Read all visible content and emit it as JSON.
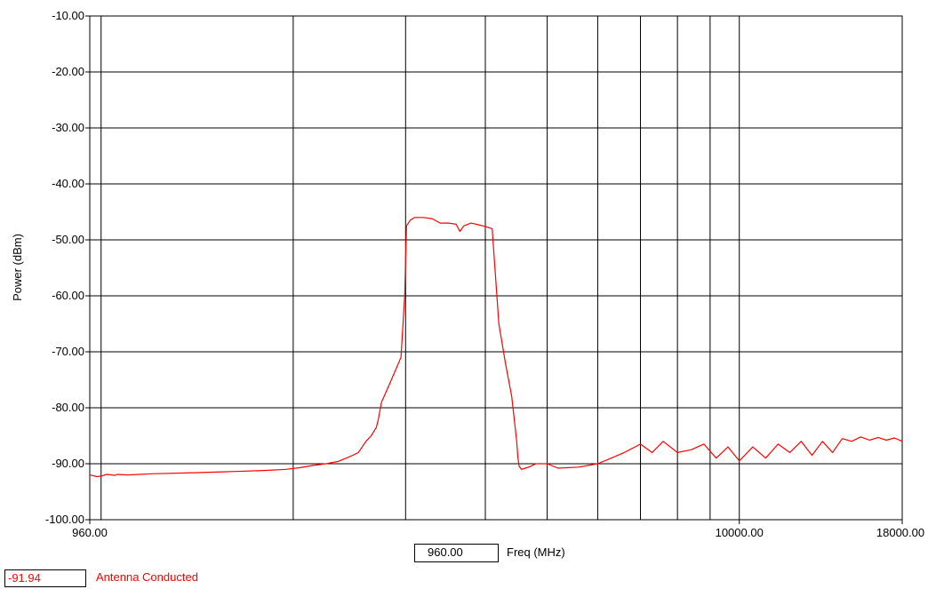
{
  "chart_data": {
    "type": "line",
    "ylabel": "Power (dBm)",
    "xlabel": "Freq (MHz)",
    "x_scale": "log",
    "xlim": [
      960,
      18000
    ],
    "ylim": [
      -100,
      -10
    ],
    "y_ticks": [
      "-10.00",
      "-20.00",
      "-30.00",
      "-40.00",
      "-50.00",
      "-60.00",
      "-70.00",
      "-80.00",
      "-90.00",
      "-100.00"
    ],
    "x_ticks": [
      {
        "value": 960,
        "label": "960.00"
      },
      {
        "value": 10000,
        "label": "10000.00"
      },
      {
        "value": 18000,
        "label": "18000.00"
      }
    ],
    "x_gridlines": [
      1000,
      2000,
      3000,
      4000,
      5000,
      6000,
      7000,
      8000,
      9000,
      10000
    ],
    "grid": true,
    "series": [
      {
        "name": "Antenna Conducted",
        "color": "#ff0000",
        "x": [
          960,
          985,
          1000,
          1020,
          1040,
          1050,
          1060,
          1100,
          1200,
          1400,
          1600,
          1800,
          1950,
          2050,
          2150,
          2250,
          2300,
          2350,
          2420,
          2480,
          2530,
          2600,
          2650,
          2700,
          2720,
          2750,
          2800,
          2850,
          2900,
          2950,
          2990,
          3010,
          3050,
          3100,
          3200,
          3300,
          3400,
          3500,
          3600,
          3650,
          3700,
          3800,
          3900,
          4000,
          4100,
          4200,
          4300,
          4400,
          4480,
          4500,
          4520,
          4560,
          4620,
          4700,
          4800,
          5000,
          5200,
          5600,
          6000,
          6300,
          6600,
          7000,
          7300,
          7600,
          8000,
          8400,
          8800,
          9200,
          9600,
          10000,
          10500,
          11000,
          11500,
          12000,
          12500,
          13000,
          13500,
          14000,
          14500,
          15000,
          15500,
          16000,
          16500,
          17000,
          17500,
          18000
        ],
        "y": [
          -92.0,
          -92.3,
          -92.2,
          -91.9,
          -92.0,
          -92.1,
          -91.9,
          -92.0,
          -91.8,
          -91.6,
          -91.4,
          -91.2,
          -91.0,
          -90.7,
          -90.3,
          -90.0,
          -89.8,
          -89.6,
          -89.0,
          -88.5,
          -88.0,
          -86.0,
          -85.0,
          -83.5,
          -82.0,
          -79.0,
          -77.0,
          -75.0,
          -73.0,
          -71.0,
          -60.0,
          -47.5,
          -46.5,
          -46.0,
          -46.0,
          -46.2,
          -47.0,
          -47.0,
          -47.2,
          -48.5,
          -47.5,
          -47.0,
          -47.3,
          -47.6,
          -48.0,
          -65.0,
          -72.0,
          -78.0,
          -86.0,
          -89.0,
          -90.5,
          -91.0,
          -90.8,
          -90.5,
          -90.0,
          -90.0,
          -90.8,
          -90.6,
          -90.0,
          -89.0,
          -88.0,
          -86.5,
          -88.0,
          -86.0,
          -88.0,
          -87.5,
          -86.5,
          -89.0,
          -87.0,
          -89.5,
          -87.0,
          -89.0,
          -86.5,
          -88.0,
          -86.0,
          -88.5,
          -86.0,
          -88.0,
          -85.5,
          -86.0,
          -85.2,
          -85.8,
          -85.3,
          -85.8,
          -85.4,
          -86.0
        ]
      }
    ]
  },
  "cursor": {
    "value": "960.00"
  },
  "readout": {
    "value": "-91.94"
  }
}
